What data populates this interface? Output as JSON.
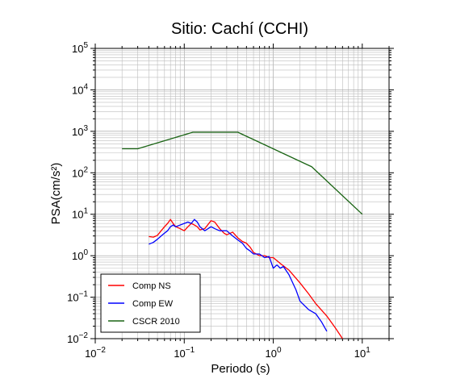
{
  "chart_data": {
    "type": "line",
    "title": "Sitio: Cachí (CCHI)",
    "xlabel": "Periodo (s)",
    "ylabel": "PSA(cm/s²)",
    "xscale": "log",
    "yscale": "log",
    "xlim": [
      0.01,
      20
    ],
    "ylim": [
      0.01,
      100000
    ],
    "grid": true,
    "legend_position": "bottom-left",
    "x_tick_labels": [
      {
        "value": 0.01,
        "base": "10",
        "exp": "−2"
      },
      {
        "value": 0.1,
        "base": "10",
        "exp": "−1"
      },
      {
        "value": 1,
        "base": "10",
        "exp": "0"
      },
      {
        "value": 10,
        "base": "10",
        "exp": "1"
      }
    ],
    "y_tick_labels": [
      {
        "value": 0.01,
        "base": "10",
        "exp": "−2"
      },
      {
        "value": 0.1,
        "base": "10",
        "exp": "−1"
      },
      {
        "value": 1,
        "base": "10",
        "exp": "0"
      },
      {
        "value": 10,
        "base": "10",
        "exp": "1"
      },
      {
        "value": 100,
        "base": "10",
        "exp": "2"
      },
      {
        "value": 1000,
        "base": "10",
        "exp": "3"
      },
      {
        "value": 10000,
        "base": "10",
        "exp": "4"
      },
      {
        "value": 100000,
        "base": "10",
        "exp": "5"
      }
    ],
    "series": [
      {
        "name": "Comp NS",
        "color": "#ff0000",
        "x": [
          0.04,
          0.045,
          0.05,
          0.055,
          0.06,
          0.065,
          0.07,
          0.075,
          0.08,
          0.09,
          0.1,
          0.11,
          0.12,
          0.13,
          0.14,
          0.15,
          0.17,
          0.2,
          0.22,
          0.25,
          0.28,
          0.3,
          0.35,
          0.4,
          0.45,
          0.5,
          0.55,
          0.6,
          0.7,
          0.8,
          0.9,
          1.0,
          1.2,
          1.5,
          2.0,
          2.5,
          3.0,
          4.0,
          5.0,
          6.0
        ],
        "y": [
          2.9,
          2.8,
          3.1,
          4.0,
          5.0,
          6.0,
          7.5,
          6.0,
          5.0,
          4.5,
          4.0,
          5.0,
          6.0,
          5.5,
          5.0,
          4.2,
          4.5,
          7.0,
          6.5,
          4.5,
          3.5,
          3.2,
          3.7,
          2.7,
          2.2,
          2.0,
          1.6,
          1.2,
          1.0,
          1.0,
          0.9,
          0.9,
          0.65,
          0.45,
          0.22,
          0.12,
          0.07,
          0.035,
          0.018,
          0.01
        ]
      },
      {
        "name": "Comp EW",
        "color": "#0000ff",
        "x": [
          0.04,
          0.045,
          0.05,
          0.055,
          0.06,
          0.065,
          0.07,
          0.075,
          0.08,
          0.09,
          0.1,
          0.11,
          0.12,
          0.13,
          0.14,
          0.15,
          0.17,
          0.2,
          0.22,
          0.25,
          0.28,
          0.3,
          0.35,
          0.4,
          0.45,
          0.5,
          0.55,
          0.6,
          0.7,
          0.8,
          0.9,
          1.0,
          1.1,
          1.2,
          1.3,
          1.5,
          1.8,
          2.0,
          2.5,
          3.0,
          3.5,
          4.0
        ],
        "y": [
          1.9,
          2.1,
          2.5,
          3.0,
          3.5,
          4.0,
          5.0,
          5.5,
          5.0,
          5.5,
          6.0,
          6.5,
          6.0,
          7.5,
          6.5,
          5.0,
          4.0,
          5.0,
          4.5,
          4.0,
          4.0,
          4.0,
          3.0,
          2.4,
          2.0,
          1.5,
          1.3,
          1.1,
          1.1,
          0.9,
          0.95,
          0.5,
          0.6,
          0.5,
          0.55,
          0.35,
          0.15,
          0.08,
          0.05,
          0.04,
          0.025,
          0.015
        ]
      },
      {
        "name": "CSCR 2010",
        "color": "#1a6414",
        "x": [
          0.02,
          0.03,
          0.125,
          0.4,
          2.7,
          10
        ],
        "y": [
          380,
          380,
          950,
          950,
          140,
          10
        ]
      }
    ]
  }
}
